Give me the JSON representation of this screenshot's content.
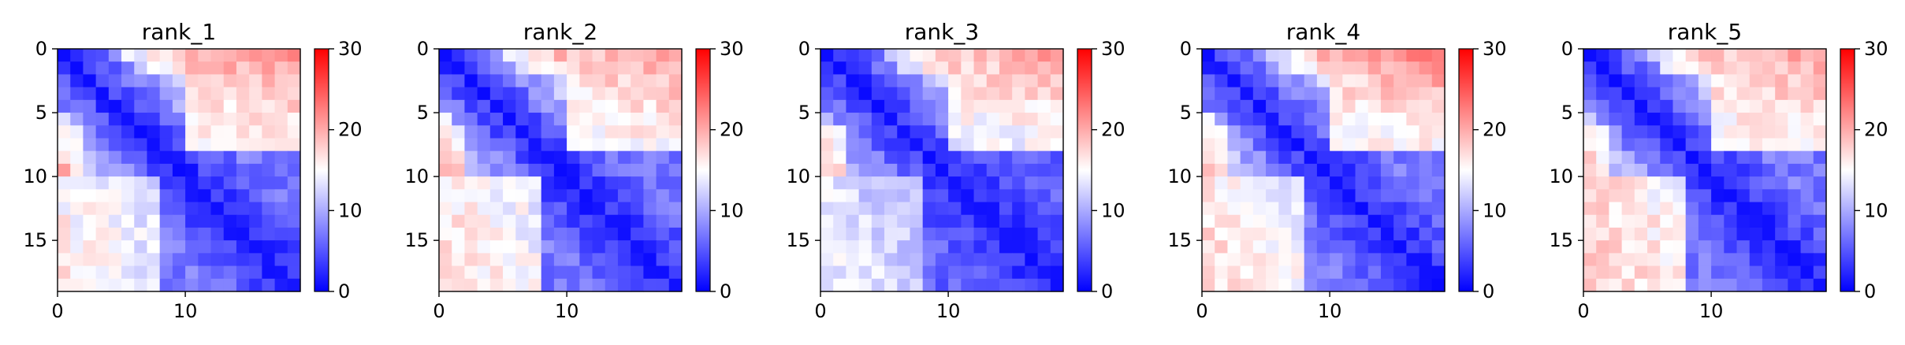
{
  "chart_data": [
    {
      "type": "heatmap",
      "title": "rank_1",
      "size": 19,
      "vmin": 0,
      "vmax": 30,
      "colormap": "bwr",
      "xticks": [
        0,
        10
      ],
      "yticks": [
        0,
        5,
        10,
        15
      ],
      "colorbar_ticks": [
        0,
        10,
        20,
        30
      ],
      "far_block": 22,
      "mid_band": 15,
      "lower_region": 7,
      "bottom_left": 15,
      "seed": 11
    },
    {
      "type": "heatmap",
      "title": "rank_2",
      "size": 19,
      "vmin": 0,
      "vmax": 30,
      "colormap": "bwr",
      "xticks": [
        0,
        10
      ],
      "yticks": [
        0,
        5,
        10,
        15
      ],
      "colorbar_ticks": [
        0,
        10,
        20,
        30
      ],
      "far_block": 21,
      "mid_band": 15,
      "lower_region": 7,
      "bottom_left": 16,
      "seed": 23
    },
    {
      "type": "heatmap",
      "title": "rank_3",
      "size": 19,
      "vmin": 0,
      "vmax": 30,
      "colormap": "bwr",
      "xticks": [
        0,
        10
      ],
      "yticks": [
        0,
        5,
        10,
        15
      ],
      "colorbar_ticks": [
        0,
        10,
        20,
        30
      ],
      "far_block": 21,
      "mid_band": 14,
      "lower_region": 6,
      "bottom_left": 13,
      "seed": 37
    },
    {
      "type": "heatmap",
      "title": "rank_4",
      "size": 19,
      "vmin": 0,
      "vmax": 30,
      "colormap": "bwr",
      "xticks": [
        0,
        10
      ],
      "yticks": [
        0,
        5,
        10,
        15
      ],
      "colorbar_ticks": [
        0,
        10,
        20,
        30
      ],
      "far_block": 22,
      "mid_band": 15,
      "lower_region": 7,
      "bottom_left": 16,
      "seed": 41
    },
    {
      "type": "heatmap",
      "title": "rank_5",
      "size": 19,
      "vmin": 0,
      "vmax": 30,
      "colormap": "bwr",
      "xticks": [
        0,
        10
      ],
      "yticks": [
        0,
        5,
        10,
        15
      ],
      "colorbar_ticks": [
        0,
        10,
        20,
        30
      ],
      "far_block": 21,
      "mid_band": 15,
      "lower_region": 7,
      "bottom_left": 17,
      "seed": 53
    }
  ]
}
